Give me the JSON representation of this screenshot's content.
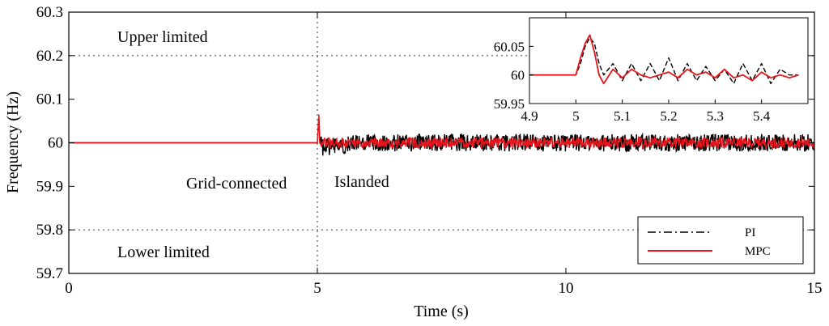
{
  "chart_data": [
    {
      "type": "line",
      "title": "",
      "xlabel": "Time (s)",
      "ylabel": "Frequency (Hz)",
      "xlim": [
        0,
        15
      ],
      "ylim": [
        59.7,
        60.3
      ],
      "xticks": [
        0,
        5,
        10,
        15
      ],
      "yticks": [
        59.7,
        59.8,
        59.9,
        60,
        60.1,
        60.2,
        60.3
      ],
      "xtick_labels": [
        "0",
        "5",
        "10",
        "15"
      ],
      "ytick_labels": [
        "59.7",
        "59.8",
        "59.9",
        "60",
        "60.1",
        "60.2",
        "60.3"
      ],
      "reference_lines": {
        "upper": 60.2,
        "lower": 59.8,
        "switch_time": 5
      },
      "annotations": {
        "upper": "Upper limited",
        "lower": "Lower limited",
        "grid": "Grid-connected",
        "islanded": "Islanded"
      },
      "legend": {
        "position": "bottom-right",
        "entries": [
          "PI",
          "MPC"
        ]
      },
      "series": [
        {
          "name": "PI",
          "color": "#000000",
          "style": "dash-dot",
          "x": [
            0,
            5.0,
            5.01,
            5.03,
            5.05,
            5.1,
            6,
            7,
            8,
            9,
            10,
            11,
            12,
            13,
            14,
            15
          ],
          "y": [
            60.0,
            60.0,
            60.02,
            60.06,
            60.0,
            59.99,
            60.0,
            60.0,
            60.0,
            60.0,
            60.0,
            60.0,
            60.0,
            60.0,
            60.0,
            60.0
          ],
          "noise_amplitude": 0.02
        },
        {
          "name": "MPC",
          "color": "#e8141b",
          "style": "solid",
          "x": [
            0,
            5.0,
            5.01,
            5.03,
            5.05,
            5.1,
            6,
            7,
            8,
            9,
            10,
            11,
            12,
            13,
            14,
            15
          ],
          "y": [
            60.0,
            60.0,
            60.02,
            60.065,
            60.0,
            60.0,
            60.0,
            60.0,
            60.0,
            60.0,
            60.0,
            60.0,
            60.0,
            60.0,
            60.0,
            60.0
          ],
          "noise_amplitude": 0.012
        }
      ]
    },
    {
      "type": "line",
      "title": "",
      "xlim": [
        4.9,
        5.5
      ],
      "ylim": [
        59.95,
        60.1
      ],
      "xticks": [
        4.9,
        5,
        5.1,
        5.2,
        5.3,
        5.4
      ],
      "yticks": [
        59.95,
        60,
        60.05
      ],
      "xtick_labels": [
        "4.9",
        "5",
        "5.1",
        "5.2",
        "5.3",
        "5.4"
      ],
      "ytick_labels": [
        "59.95",
        "60",
        "60.05"
      ],
      "series": [
        {
          "name": "PI",
          "color": "#000000",
          "style": "dash",
          "x": [
            4.9,
            5.0,
            5.01,
            5.02,
            5.03,
            5.04,
            5.05,
            5.06,
            5.08,
            5.1,
            5.12,
            5.14,
            5.16,
            5.18,
            5.2,
            5.22,
            5.24,
            5.26,
            5.28,
            5.3,
            5.32,
            5.34,
            5.36,
            5.38,
            5.4,
            5.42,
            5.44,
            5.46,
            5.48
          ],
          "y": [
            60.0,
            60.0,
            60.02,
            60.05,
            60.065,
            60.055,
            60.02,
            60.0,
            60.02,
            59.99,
            60.02,
            59.99,
            60.02,
            59.99,
            60.03,
            59.99,
            60.02,
            59.99,
            60.015,
            59.99,
            60.01,
            59.985,
            60.02,
            59.99,
            60.02,
            59.985,
            60.01,
            60.0,
            60.0
          ]
        },
        {
          "name": "MPC",
          "color": "#e8141b",
          "style": "solid",
          "x": [
            4.9,
            5.0,
            5.01,
            5.02,
            5.03,
            5.04,
            5.05,
            5.06,
            5.08,
            5.1,
            5.12,
            5.14,
            5.16,
            5.18,
            5.2,
            5.22,
            5.24,
            5.26,
            5.28,
            5.3,
            5.32,
            5.34,
            5.36,
            5.38,
            5.4,
            5.42,
            5.44,
            5.46,
            5.48
          ],
          "y": [
            60.0,
            60.0,
            60.03,
            60.055,
            60.07,
            60.04,
            60.0,
            59.985,
            60.01,
            59.995,
            60.01,
            60.0,
            59.995,
            60.0,
            60.005,
            59.995,
            60.01,
            60.0,
            60.005,
            59.995,
            60.01,
            59.995,
            60.0,
            59.99,
            60.005,
            59.995,
            60.0,
            59.995,
            60.0
          ]
        }
      ]
    }
  ]
}
